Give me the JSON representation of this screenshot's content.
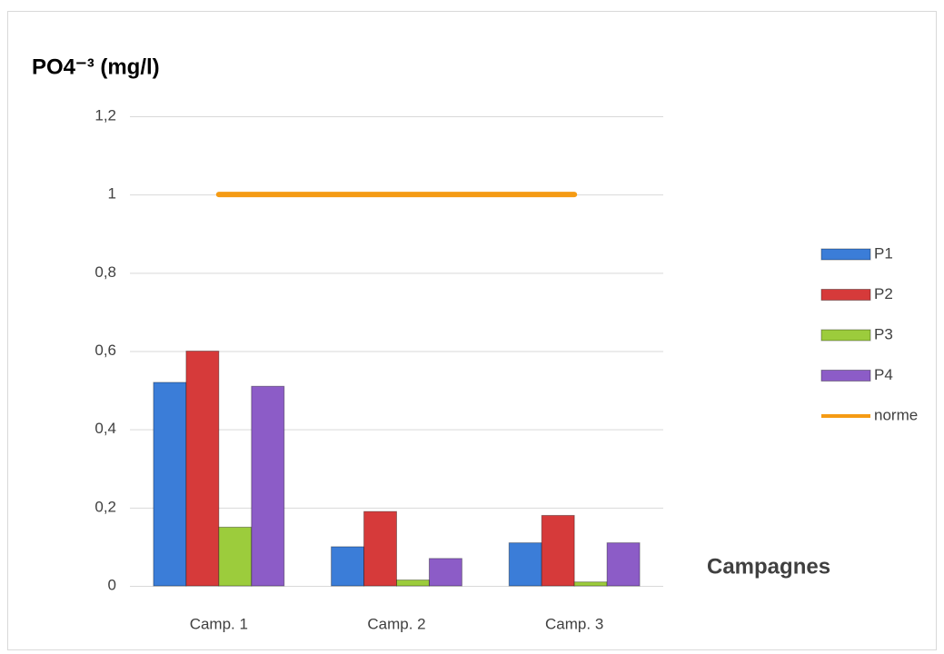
{
  "chart_data": {
    "type": "bar",
    "title": "PO4⁻³ (mg/l)",
    "x_label": "Campagnes",
    "categories": [
      "Camp. 1",
      "Camp. 2",
      "Camp. 3"
    ],
    "series": [
      {
        "name": "P1",
        "color": "#3b7dd8",
        "values": [
          0.52,
          0.1,
          0.11
        ]
      },
      {
        "name": "P2",
        "color": "#d63a3a",
        "values": [
          0.6,
          0.19,
          0.18
        ]
      },
      {
        "name": "P3",
        "color": "#9ccc3c",
        "values": [
          0.15,
          0.015,
          0.01
        ]
      },
      {
        "name": "P4",
        "color": "#8c5cc7",
        "values": [
          0.51,
          0.07,
          0.11
        ]
      },
      {
        "name": "norme",
        "color": "#f59b14",
        "type": "line",
        "values": [
          1,
          1,
          1
        ]
      }
    ],
    "ylim": [
      0,
      1.2
    ],
    "yticks": [
      0,
      {
        "value": 0.2,
        "label": "0,2"
      },
      {
        "value": 0.4,
        "label": "0,4"
      },
      {
        "value": 0.6,
        "label": "0,6"
      },
      {
        "value": 0.8,
        "label": "0,8"
      },
      1,
      {
        "value": 1.2,
        "label": "1,2"
      }
    ],
    "grid": true,
    "legend": "right"
  }
}
